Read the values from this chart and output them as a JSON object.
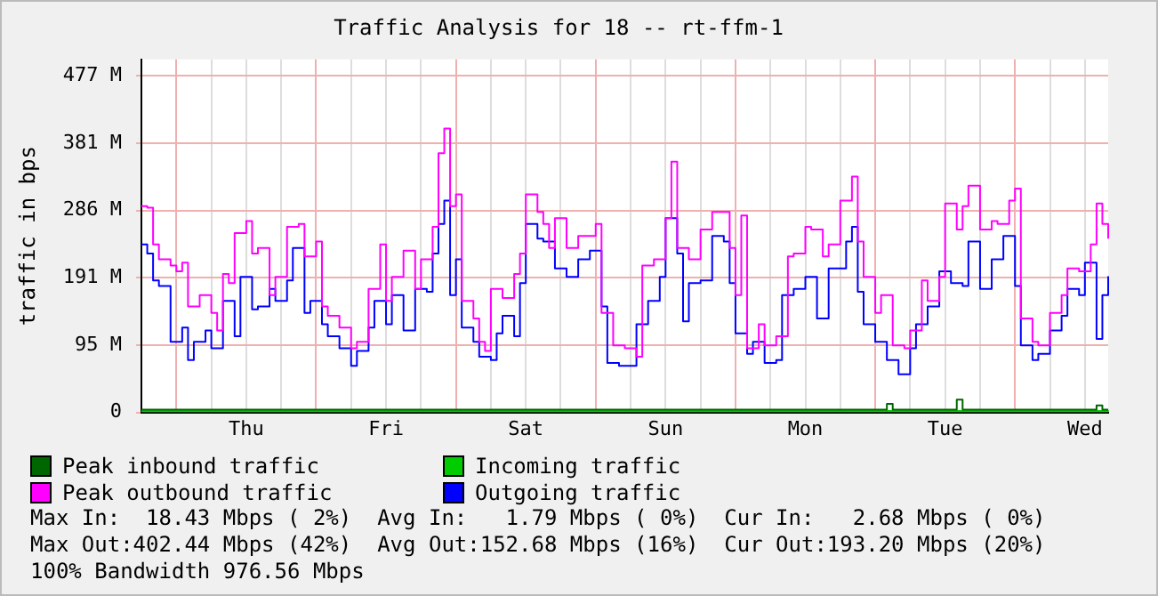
{
  "chart_data": {
    "type": "step",
    "title": "Traffic Analysis for 18 -- rt-ffm-1",
    "ylabel": "traffic in bps",
    "categories": [
      null,
      null,
      null,
      null,
      null,
      null,
      null,
      null,
      null,
      null,
      null,
      null,
      null,
      null,
      null,
      null,
      null,
      null,
      "Thu",
      null,
      null,
      null,
      null,
      null,
      null,
      null,
      null,
      null,
      null,
      null,
      null,
      null,
      null,
      null,
      null,
      null,
      null,
      null,
      null,
      null,
      null,
      null,
      "Fri",
      null,
      null,
      null,
      null,
      null,
      null,
      null,
      null,
      null,
      null,
      null,
      null,
      null,
      null,
      null,
      null,
      null,
      null,
      null,
      null,
      null,
      null,
      null,
      "Sat",
      null,
      null,
      null,
      null,
      null,
      null,
      null,
      null,
      null,
      null,
      null,
      null,
      null,
      null,
      null,
      null,
      null,
      null,
      null,
      null,
      null,
      null,
      null,
      "Sun",
      null,
      null,
      null,
      null,
      null,
      null,
      null,
      null,
      null,
      null,
      null,
      null,
      null,
      null,
      null,
      null,
      null,
      null,
      null,
      null,
      null,
      null,
      null,
      "Mon",
      null,
      null,
      null,
      null,
      null,
      null,
      null,
      null,
      null,
      null,
      null,
      null,
      null,
      null,
      null,
      null,
      null,
      null,
      null,
      null,
      null,
      null,
      null,
      "Tue",
      null,
      null,
      null,
      null,
      null,
      null,
      null,
      null,
      null,
      null,
      null,
      null,
      null,
      null,
      null,
      null,
      null,
      null,
      null,
      null,
      null,
      null,
      null,
      "Wed",
      null,
      null,
      null,
      null
    ],
    "ylim": [
      0,
      500
    ],
    "yticks": [
      0,
      {
        "value": 95.37,
        "label": "95 M"
      },
      {
        "value": 190.73,
        "label": "191 M"
      },
      {
        "value": 286.1,
        "label": "286 M"
      },
      {
        "value": 381.47,
        "label": "381 M"
      },
      {
        "value": 476.84,
        "label": "477 M"
      }
    ],
    "grid": true,
    "legend": "bottom",
    "series": [
      {
        "name": "Peak inbound traffic",
        "color": "#006600",
        "values": [
          4,
          4,
          4,
          4,
          4,
          4,
          4,
          4,
          4,
          4,
          4,
          4,
          4,
          4,
          4,
          4,
          4,
          4,
          4,
          4,
          4,
          4,
          4,
          4,
          4,
          4,
          4,
          4,
          4,
          4,
          4,
          4,
          4,
          4,
          4,
          4,
          4,
          4,
          4,
          4,
          4,
          4,
          4,
          4,
          4,
          4,
          4,
          4,
          4,
          4,
          4,
          4,
          4,
          4,
          4,
          4,
          4,
          4,
          4,
          4,
          4,
          4,
          4,
          4,
          4,
          4,
          4,
          4,
          4,
          4,
          4,
          4,
          4,
          4,
          4,
          4,
          4,
          4,
          4,
          4,
          4,
          4,
          4,
          4,
          4,
          4,
          4,
          4,
          4,
          4,
          4,
          4,
          4,
          4,
          4,
          4,
          4,
          4,
          4,
          4,
          4,
          4,
          4,
          4,
          4,
          4,
          4,
          4,
          4,
          4,
          4,
          4,
          4,
          4,
          4,
          4,
          4,
          4,
          4,
          4,
          4,
          4,
          4,
          4,
          4,
          4,
          4,
          4,
          12,
          4,
          4,
          4,
          4,
          4,
          4,
          4,
          4,
          4,
          4,
          4,
          18,
          4,
          4,
          4,
          4,
          4,
          4,
          4,
          4,
          4,
          4,
          4,
          4,
          4,
          4,
          4,
          4,
          4,
          4,
          4,
          4,
          4,
          4,
          4,
          10,
          4,
          4
        ]
      },
      {
        "name": "Incoming traffic",
        "type": "area",
        "color": "#00cc00",
        "values": [
          2,
          2,
          2,
          2,
          2,
          2,
          2,
          2,
          2,
          2,
          2,
          2,
          2,
          2,
          2,
          2,
          2,
          2,
          2,
          2,
          2,
          2,
          2,
          2,
          2,
          2,
          2,
          2,
          2,
          2,
          2,
          2,
          2,
          2,
          2,
          2,
          2,
          2,
          2,
          2,
          2,
          2,
          2,
          2,
          2,
          2,
          2,
          2,
          2,
          2,
          2,
          2,
          2,
          2,
          2,
          2,
          2,
          2,
          2,
          2,
          2,
          2,
          2,
          2,
          2,
          2,
          2,
          2,
          2,
          2,
          2,
          2,
          2,
          2,
          2,
          2,
          2,
          2,
          2,
          2,
          2,
          2,
          2,
          2,
          2,
          2,
          2,
          2,
          2,
          2,
          2,
          2,
          2,
          2,
          2,
          2,
          2,
          2,
          2,
          2,
          2,
          2,
          2,
          2,
          2,
          2,
          2,
          2,
          2,
          2,
          2,
          2,
          2,
          2,
          2,
          2,
          2,
          2,
          2,
          2,
          2,
          2,
          2,
          2,
          2,
          2,
          2,
          2,
          2,
          2,
          2,
          2,
          2,
          2,
          2,
          2,
          2,
          2,
          2,
          2,
          2,
          2,
          2,
          2,
          2,
          2,
          2,
          2,
          2,
          2,
          2,
          2,
          2,
          2,
          2,
          2,
          2,
          2,
          2,
          2,
          2,
          2,
          2,
          2,
          2,
          2,
          3
        ]
      },
      {
        "name": "Peak outbound traffic",
        "color": "#ff00ff",
        "values": [
          292,
          290,
          238,
          217,
          217,
          208,
          200,
          212,
          150,
          150,
          166,
          166,
          141,
          116,
          196,
          183,
          254,
          254,
          271,
          225,
          233,
          233,
          166,
          192,
          192,
          263,
          263,
          267,
          221,
          221,
          242,
          150,
          137,
          137,
          120,
          120,
          91,
          100,
          100,
          175,
          175,
          238,
          158,
          192,
          192,
          229,
          229,
          175,
          217,
          217,
          263,
          367,
          402,
          292,
          309,
          158,
          158,
          133,
          100,
          87,
          175,
          175,
          162,
          162,
          196,
          225,
          309,
          309,
          284,
          267,
          233,
          275,
          275,
          233,
          233,
          250,
          250,
          250,
          267,
          141,
          141,
          95,
          95,
          91,
          91,
          79,
          208,
          208,
          217,
          217,
          275,
          355,
          233,
          233,
          217,
          217,
          259,
          259,
          284,
          284,
          284,
          233,
          166,
          279,
          91,
          91,
          125,
          95,
          95,
          108,
          108,
          221,
          225,
          225,
          263,
          259,
          259,
          221,
          238,
          238,
          300,
          300,
          334,
          242,
          192,
          192,
          141,
          166,
          166,
          95,
          95,
          91,
          116,
          116,
          187,
          158,
          158,
          192,
          296,
          296,
          259,
          292,
          321,
          321,
          259,
          259,
          271,
          267,
          267,
          300,
          317,
          133,
          133,
          100,
          95,
          95,
          141,
          141,
          166,
          204,
          204,
          200,
          200,
          238,
          296,
          267,
          246
        ]
      },
      {
        "name": "Outgoing traffic",
        "color": "#0000ff",
        "values": [
          238,
          225,
          187,
          179,
          179,
          100,
          100,
          120,
          74,
          100,
          100,
          116,
          91,
          91,
          158,
          158,
          108,
          192,
          192,
          146,
          150,
          150,
          175,
          158,
          158,
          187,
          233,
          233,
          141,
          158,
          158,
          125,
          108,
          108,
          91,
          91,
          66,
          87,
          87,
          120,
          158,
          158,
          125,
          166,
          166,
          116,
          116,
          175,
          175,
          171,
          225,
          267,
          300,
          166,
          217,
          120,
          120,
          100,
          79,
          79,
          74,
          112,
          137,
          137,
          108,
          183,
          267,
          267,
          246,
          242,
          242,
          204,
          204,
          192,
          192,
          217,
          217,
          229,
          229,
          150,
          70,
          70,
          66,
          66,
          66,
          125,
          125,
          158,
          158,
          192,
          275,
          275,
          225,
          129,
          183,
          183,
          187,
          187,
          250,
          250,
          242,
          183,
          112,
          112,
          83,
          100,
          100,
          70,
          70,
          74,
          166,
          166,
          175,
          175,
          192,
          192,
          133,
          133,
          204,
          204,
          204,
          242,
          263,
          171,
          125,
          125,
          100,
          100,
          74,
          74,
          54,
          54,
          91,
          125,
          125,
          150,
          150,
          200,
          200,
          183,
          183,
          179,
          242,
          242,
          175,
          175,
          217,
          217,
          250,
          250,
          179,
          95,
          95,
          74,
          83,
          83,
          116,
          116,
          137,
          175,
          175,
          166,
          212,
          212,
          104,
          166,
          193
        ]
      }
    ],
    "annotations": [
      "Max In:  18.43 Mbps ( 2%)  Avg In:   1.79 Mbps ( 0%)  Cur In:   2.68 Mbps ( 0%)",
      "Max Out:402.44 Mbps (42%)  Avg Out:152.68 Mbps (16%)  Cur Out:193.20 Mbps (20%)",
      "100% Bandwidth 976.56 Mbps"
    ]
  }
}
